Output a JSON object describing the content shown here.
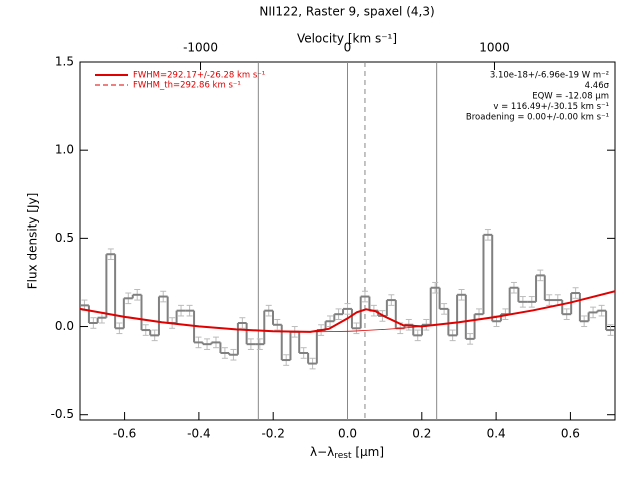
{
  "chart_data": {
    "type": "step",
    "title": "NII122, Raster 9, spaxel (4,3)",
    "xlabel_parts": [
      "λ−λ",
      "rest",
      " [μm]"
    ],
    "ylabel": "Flux density [Jy]",
    "x2label": "Velocity [km s⁻¹]",
    "xlim": [
      -0.72,
      0.72
    ],
    "ylim": [
      -0.53,
      1.5
    ],
    "x2lim": [
      -1820,
      1820
    ],
    "xticks": [
      -0.6,
      -0.4,
      -0.2,
      {
        "value": 0,
        "label": "0.0"
      },
      0.2,
      0.4,
      0.6
    ],
    "yticks": [
      -0.5,
      {
        "value": 0,
        "label": "0.0"
      },
      0.5,
      {
        "value": 1,
        "label": "1.0"
      },
      1.5
    ],
    "x2ticks": [
      -1000,
      0,
      1000
    ],
    "x": [
      -0.708,
      -0.684,
      -0.661,
      -0.637,
      -0.614,
      -0.59,
      -0.566,
      -0.543,
      -0.519,
      -0.496,
      -0.472,
      -0.448,
      -0.425,
      -0.401,
      -0.378,
      -0.354,
      -0.33,
      -0.307,
      -0.283,
      -0.26,
      -0.236,
      -0.212,
      -0.189,
      -0.165,
      -0.142,
      -0.118,
      -0.094,
      -0.071,
      -0.047,
      -0.024,
      0.0,
      0.024,
      0.047,
      0.071,
      0.094,
      0.118,
      0.142,
      0.165,
      0.189,
      0.212,
      0.236,
      0.26,
      0.283,
      0.307,
      0.33,
      0.354,
      0.378,
      0.401,
      0.425,
      0.448,
      0.472,
      0.496,
      0.519,
      0.543,
      0.566,
      0.59,
      0.614,
      0.637,
      0.661,
      0.684,
      0.708
    ],
    "values": [
      0.12,
      0.02,
      0.05,
      0.41,
      -0.01,
      0.16,
      0.18,
      -0.02,
      -0.05,
      0.17,
      0.02,
      0.09,
      0.09,
      -0.09,
      -0.1,
      -0.09,
      -0.15,
      -0.16,
      0.02,
      -0.1,
      -0.1,
      0.09,
      0.01,
      -0.19,
      -0.03,
      -0.15,
      -0.21,
      -0.02,
      0.03,
      0.07,
      0.1,
      -0.01,
      0.17,
      0.09,
      0.06,
      0.15,
      -0.01,
      0.01,
      -0.05,
      0.01,
      0.22,
      0.1,
      -0.05,
      0.18,
      -0.07,
      0.07,
      0.52,
      0.03,
      0.07,
      0.22,
      0.14,
      0.14,
      0.29,
      0.15,
      0.15,
      0.07,
      0.19,
      0.03,
      0.08,
      0.09,
      -0.02
    ],
    "errors": [
      0.03,
      0.03,
      0.03,
      0.03,
      0.03,
      0.03,
      0.03,
      0.03,
      0.03,
      0.03,
      0.03,
      0.03,
      0.03,
      0.03,
      0.03,
      0.03,
      0.03,
      0.03,
      0.03,
      0.03,
      0.03,
      0.03,
      0.03,
      0.03,
      0.03,
      0.03,
      0.03,
      0.03,
      0.03,
      0.03,
      0.03,
      0.03,
      0.03,
      0.03,
      0.03,
      0.03,
      0.03,
      0.03,
      0.03,
      0.03,
      0.03,
      0.03,
      0.03,
      0.03,
      0.03,
      0.03,
      0.03,
      0.03,
      0.03,
      0.03,
      0.03,
      0.03,
      0.03,
      0.03,
      0.03,
      0.03,
      0.03,
      0.03,
      0.03,
      0.03,
      0.03
    ],
    "color": "#808080",
    "error_color": "#bbbbbb",
    "curves": [
      {
        "name": "FWHM=292.17+/-26.28 km s⁻¹",
        "color": "#e00000",
        "width": 2,
        "x": [
          -0.72,
          -0.6,
          -0.5,
          -0.4,
          -0.3,
          -0.2,
          -0.1,
          -0.05,
          0,
          0.025,
          0.05,
          0.075,
          0.1,
          0.15,
          0.2,
          0.3,
          0.4,
          0.5,
          0.6,
          0.72
        ],
        "values": [
          0.1,
          0.055,
          0.024,
          0.001,
          -0.016,
          -0.027,
          -0.03,
          -0.013,
          0.046,
          0.081,
          0.098,
          0.087,
          0.057,
          0.007,
          0.001,
          0.024,
          0.055,
          0.092,
          0.136,
          0.2
        ]
      },
      {
        "color": "#e00000",
        "width": 0.8,
        "x": [
          -0.72,
          -0.6,
          -0.5,
          -0.4,
          -0.3,
          -0.2,
          -0.1,
          -0.05,
          0,
          0.025,
          0.05,
          0.075,
          0.1,
          0.15,
          0.2,
          0.3,
          0.4,
          0.5,
          0.6,
          0.72
        ],
        "values": [
          0.1,
          0.055,
          0.024,
          0.001,
          -0.016,
          -0.027,
          -0.03,
          -0.029,
          -0.027,
          -0.025,
          -0.022,
          -0.019,
          -0.016,
          -0.009,
          0.001,
          0.024,
          0.055,
          0.092,
          0.136,
          0.2
        ]
      }
    ],
    "legend_entries": [
      {
        "label": "FWHM=292.17+/-26.28 km s⁻¹",
        "color": "#e00000",
        "dash": false
      },
      {
        "label": "FWHM_th=292.86 km s⁻¹",
        "color": "#e00000",
        "dash": true
      }
    ],
    "vlines": [
      {
        "x": -0.24,
        "dash": false
      },
      {
        "x": 0,
        "dash": false
      },
      {
        "x": 0.047,
        "dash": true
      },
      {
        "x": 0.24,
        "dash": false
      }
    ],
    "annotations": [
      "3.10e-18+/-6.96e-19 W m⁻²",
      "4.46σ",
      "EQW = -12.08 μm",
      "v = 116.49+/-30.15 km s⁻¹",
      "Broadening = 0.00+/-0.00 km s⁻¹"
    ]
  }
}
